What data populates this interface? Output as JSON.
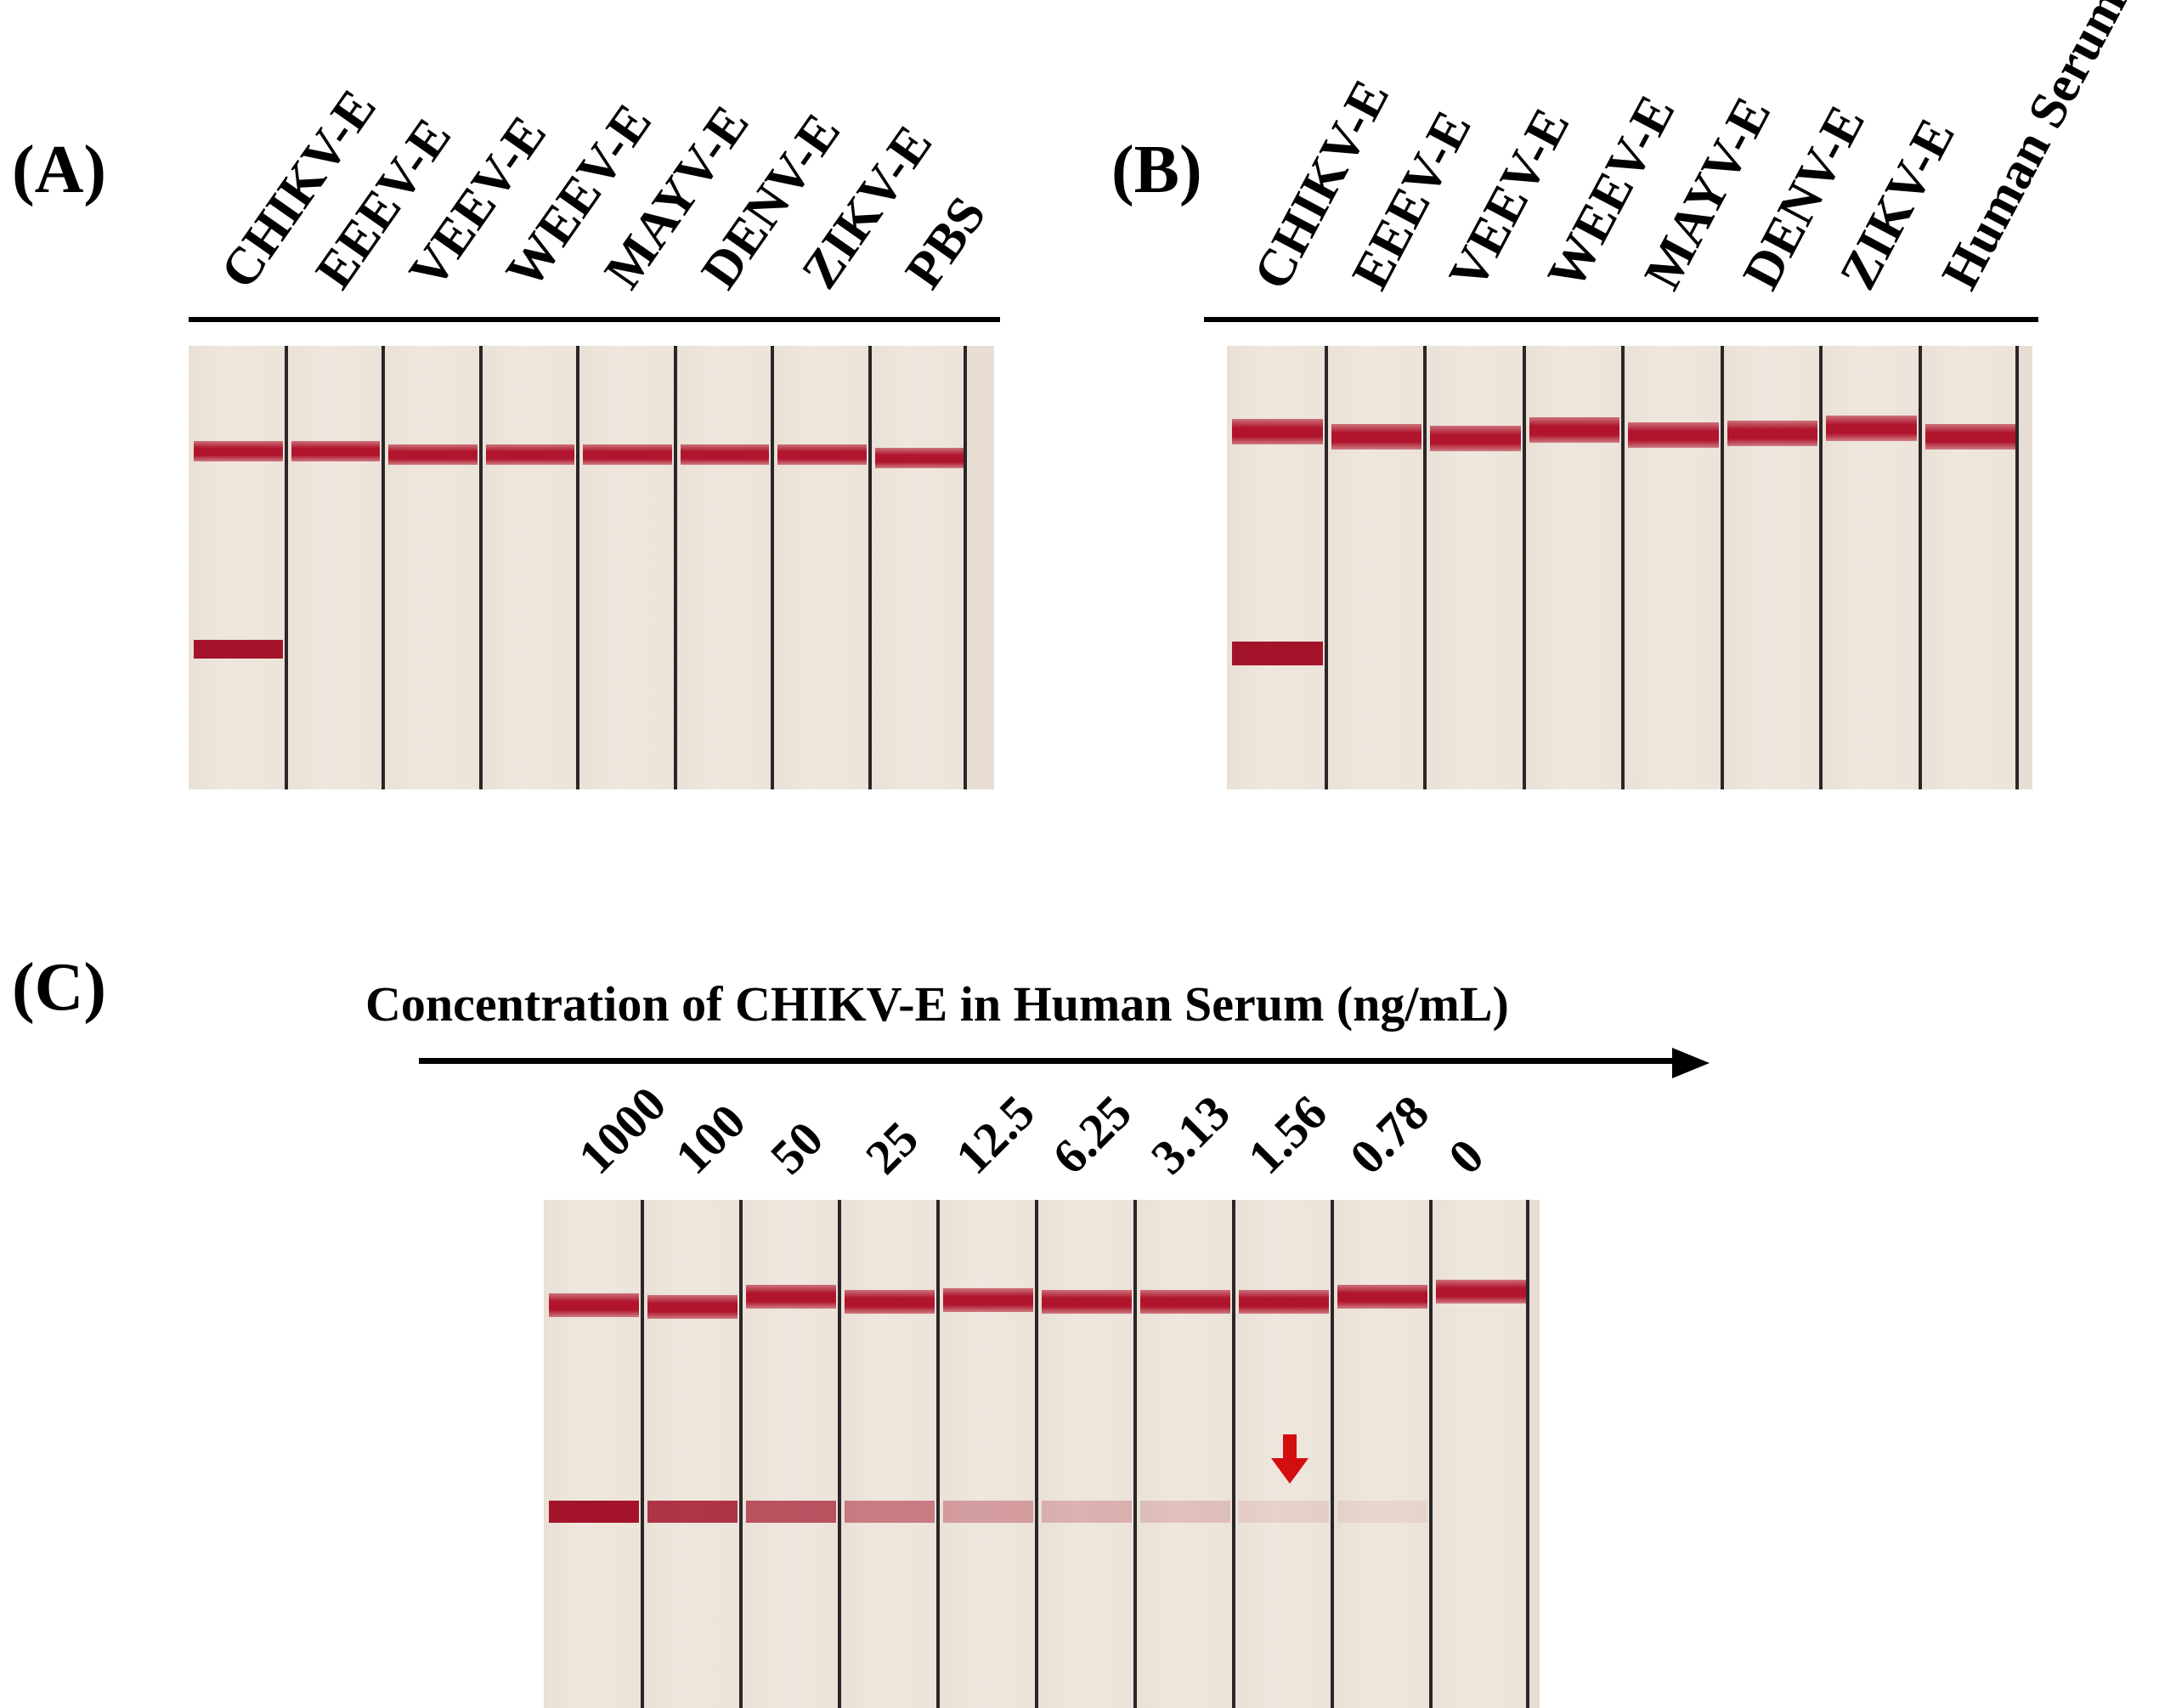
{
  "panels": {
    "a": {
      "label": "(A)",
      "lanes": [
        "CHIKV-E",
        "EEEV-E",
        "VEEV-E",
        "WEEV-E",
        "MAYV-E",
        "DENV-E",
        "ZIKV-E",
        "PBS"
      ],
      "test_line_visible": [
        true,
        false,
        false,
        false,
        false,
        false,
        false,
        false
      ]
    },
    "b": {
      "label": "(B)",
      "lanes": [
        "CHIKV-E",
        "EEEV-E",
        "VEEV-E",
        "WEEV-E",
        "MAYV-E",
        "DENV-E",
        "ZIKV-E",
        "Human Serum"
      ],
      "test_line_visible": [
        true,
        false,
        false,
        false,
        false,
        false,
        false,
        false
      ]
    },
    "c": {
      "label": "(C)",
      "title": "Concentration of CHIKV-E in Human Serum (ng/mL)",
      "lanes": [
        "1000",
        "100",
        "50",
        "25",
        "12.5",
        "6.25",
        "3.13",
        "1.56",
        "0.78",
        "0"
      ],
      "test_line_intensity": [
        1.0,
        0.85,
        0.7,
        0.5,
        0.35,
        0.25,
        0.18,
        0.1,
        0.05,
        0.0
      ],
      "detection_limit_marker_lane": "1.56"
    }
  },
  "colors": {
    "control_line": "#b0152d",
    "test_line": "#a3142b",
    "marker_arrow": "#d40e0e"
  }
}
